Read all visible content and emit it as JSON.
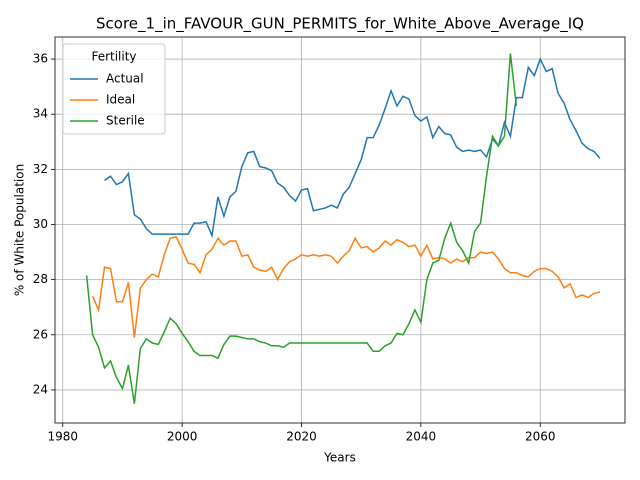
{
  "chart_data": {
    "type": "line",
    "title": "Score_1_in_FAVOUR_GUN_PERMITS_for_White_Above_Average_IQ",
    "xlabel": "Years",
    "ylabel": "% of White Population",
    "legend_title": "Fertility",
    "legend": "upper left",
    "grid": true,
    "x": [
      1984,
      1985,
      1986,
      1987,
      1988,
      1989,
      1990,
      1991,
      1992,
      1993,
      1994,
      1995,
      1996,
      1997,
      1998,
      1999,
      2000,
      2001,
      2002,
      2003,
      2004,
      2005,
      2006,
      2007,
      2008,
      2009,
      2010,
      2011,
      2012,
      2013,
      2014,
      2015,
      2016,
      2017,
      2018,
      2019,
      2020,
      2021,
      2022,
      2023,
      2024,
      2025,
      2026,
      2027,
      2028,
      2029,
      2030,
      2031,
      2032,
      2033,
      2034,
      2035,
      2036,
      2037,
      2038,
      2039,
      2040,
      2041,
      2042,
      2043,
      2044,
      2045,
      2046,
      2047,
      2048,
      2049,
      2050,
      2051,
      2052,
      2053,
      2054,
      2055,
      2056,
      2057,
      2058,
      2059,
      2060,
      2061,
      2062,
      2063,
      2064,
      2065,
      2066,
      2067,
      2068,
      2069,
      2070
    ],
    "series": [
      {
        "name": "Actual",
        "color": "#1f77b4",
        "values": [
          null,
          null,
          null,
          31.6,
          31.75,
          31.45,
          31.55,
          31.85,
          30.35,
          30.2,
          29.85,
          29.65,
          29.65,
          29.65,
          29.65,
          29.65,
          29.65,
          29.65,
          30.05,
          30.05,
          30.1,
          29.6,
          31.0,
          30.3,
          31.0,
          31.2,
          32.1,
          32.6,
          32.65,
          32.1,
          32.05,
          31.95,
          31.5,
          31.35,
          31.05,
          30.85,
          31.25,
          31.3,
          30.5,
          30.55,
          30.6,
          30.7,
          30.6,
          31.1,
          31.35,
          31.85,
          32.35,
          33.15,
          33.15,
          33.6,
          34.2,
          34.85,
          34.3,
          34.65,
          34.55,
          33.95,
          33.75,
          33.9,
          33.15,
          33.55,
          33.3,
          33.25,
          32.8,
          32.65,
          32.7,
          32.65,
          32.7,
          32.45,
          33.1,
          32.85,
          33.7,
          33.2,
          34.6,
          34.6,
          35.7,
          35.4,
          36.0,
          35.55,
          35.65,
          34.75,
          34.4,
          33.8,
          33.4,
          32.95,
          32.75,
          32.65,
          32.4
        ]
      },
      {
        "name": "Ideal",
        "color": "#ff7f0e",
        "values": [
          null,
          27.4,
          26.9,
          28.45,
          28.4,
          27.2,
          27.2,
          27.9,
          25.9,
          27.7,
          28.0,
          28.2,
          28.1,
          28.9,
          29.5,
          29.55,
          29.1,
          28.6,
          28.55,
          28.25,
          28.9,
          29.1,
          29.5,
          29.25,
          29.4,
          29.4,
          28.85,
          28.9,
          28.45,
          28.35,
          28.3,
          28.45,
          28.0,
          28.4,
          28.65,
          28.75,
          28.9,
          28.85,
          28.9,
          28.85,
          28.9,
          28.85,
          28.6,
          28.85,
          29.05,
          29.5,
          29.15,
          29.2,
          29.0,
          29.15,
          29.4,
          29.25,
          29.45,
          29.35,
          29.2,
          29.25,
          28.85,
          29.25,
          28.75,
          28.8,
          28.75,
          28.6,
          28.75,
          28.65,
          28.8,
          28.8,
          29.0,
          28.95,
          29.0,
          28.75,
          28.4,
          28.25,
          28.25,
          28.15,
          28.1,
          28.3,
          28.4,
          28.4,
          28.3,
          28.1,
          27.7,
          27.85,
          27.35,
          27.45,
          27.35,
          27.5,
          27.55
        ]
      },
      {
        "name": "Sterile",
        "color": "#2ca02c",
        "values": [
          28.15,
          26.0,
          25.55,
          24.8,
          25.05,
          24.45,
          24.05,
          24.9,
          23.5,
          25.5,
          25.85,
          25.7,
          25.65,
          26.1,
          26.6,
          26.4,
          26.05,
          25.75,
          25.4,
          25.25,
          25.25,
          25.25,
          25.15,
          25.65,
          25.95,
          25.95,
          25.9,
          25.85,
          25.85,
          25.75,
          25.7,
          25.6,
          25.6,
          25.55,
          25.7,
          25.7,
          25.7,
          25.7,
          25.7,
          25.7,
          25.7,
          25.7,
          25.7,
          25.7,
          25.7,
          25.7,
          25.7,
          25.7,
          25.4,
          25.4,
          25.6,
          25.7,
          26.05,
          26.0,
          26.4,
          26.9,
          26.45,
          28.0,
          28.6,
          28.7,
          29.5,
          30.05,
          29.35,
          29.05,
          28.6,
          29.75,
          30.05,
          31.75,
          33.2,
          32.85,
          33.2,
          36.2,
          34.3,
          null,
          null,
          null,
          null,
          null,
          null,
          null,
          null,
          null,
          null,
          null,
          null,
          null,
          null
        ]
      }
    ],
    "xlim": [
      1978.7,
      2074.2
    ],
    "xticks": [
      1980,
      2000,
      2020,
      2040,
      2060
    ],
    "ylim": [
      22.8,
      36.8
    ],
    "yticks": [
      24,
      26,
      28,
      30,
      32,
      34,
      36
    ]
  }
}
